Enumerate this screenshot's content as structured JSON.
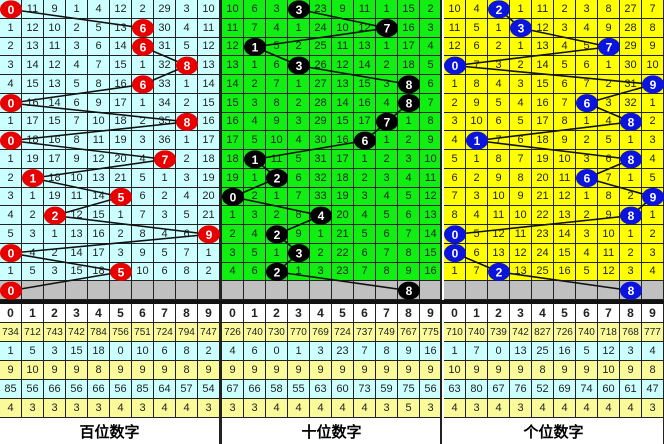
{
  "chart_data": {
    "type": "table",
    "digit_header": [
      "0",
      "1",
      "2",
      "3",
      "4",
      "5",
      "6",
      "7",
      "8",
      "9"
    ],
    "panels": [
      {
        "title": "百位数字",
        "cell_color": "#ccffff",
        "ball_color": "#e80000",
        "balls": [
          0,
          6,
          6,
          8,
          6,
          0,
          8,
          0,
          7,
          1,
          5,
          2,
          9,
          0,
          5,
          0
        ],
        "rows": [
          [
            "0",
            "11",
            "9",
            "1",
            "4",
            "12",
            "2",
            "29",
            "3",
            "10"
          ],
          [
            "1",
            "12",
            "10",
            "2",
            "5",
            "13",
            "6",
            "30",
            "4",
            "11"
          ],
          [
            "2",
            "13",
            "11",
            "3",
            "6",
            "14",
            "6",
            "31",
            "5",
            "12"
          ],
          [
            "3",
            "14",
            "12",
            "4",
            "7",
            "15",
            "1",
            "32",
            "8",
            "13"
          ],
          [
            "4",
            "15",
            "13",
            "5",
            "8",
            "16",
            "6",
            "33",
            "1",
            "14"
          ],
          [
            "0",
            "16",
            "14",
            "6",
            "9",
            "17",
            "1",
            "34",
            "2",
            "15"
          ],
          [
            "1",
            "17",
            "15",
            "7",
            "10",
            "18",
            "2",
            "35",
            "8",
            "16"
          ],
          [
            "0",
            "18",
            "16",
            "8",
            "11",
            "19",
            "3",
            "36",
            "1",
            "17"
          ],
          [
            "1",
            "19",
            "17",
            "9",
            "12",
            "20",
            "4",
            "7",
            "2",
            "18"
          ],
          [
            "2",
            "1",
            "18",
            "10",
            "13",
            "21",
            "5",
            "1",
            "3",
            "19"
          ],
          [
            "3",
            "1",
            "19",
            "11",
            "14",
            "5",
            "6",
            "2",
            "4",
            "20"
          ],
          [
            "4",
            "2",
            "2",
            "12",
            "15",
            "1",
            "7",
            "3",
            "5",
            "21"
          ],
          [
            "5",
            "3",
            "1",
            "13",
            "16",
            "2",
            "8",
            "4",
            "6",
            "9"
          ],
          [
            "0",
            "4",
            "2",
            "14",
            "17",
            "3",
            "9",
            "5",
            "7",
            "1"
          ],
          [
            "1",
            "5",
            "3",
            "15",
            "18",
            "5",
            "10",
            "6",
            "8",
            "2"
          ]
        ],
        "stats": [
          [
            "734",
            "712",
            "743",
            "742",
            "784",
            "756",
            "751",
            "724",
            "794",
            "747"
          ],
          [
            "1",
            "5",
            "3",
            "15",
            "18",
            "0",
            "10",
            "6",
            "8",
            "2"
          ],
          [
            "9",
            "10",
            "9",
            "9",
            "8",
            "9",
            "9",
            "9",
            "8",
            "9"
          ],
          [
            "85",
            "56",
            "66",
            "56",
            "66",
            "56",
            "85",
            "64",
            "57",
            "54"
          ],
          [
            "4",
            "3",
            "3",
            "3",
            "3",
            "4",
            "3",
            "4",
            "4",
            "3"
          ]
        ]
      },
      {
        "title": "十位数字",
        "cell_color": "#11ee11",
        "ball_color": "#000000",
        "balls": [
          3,
          7,
          1,
          3,
          8,
          8,
          7,
          6,
          1,
          2,
          0,
          4,
          2,
          3,
          2,
          8
        ],
        "rows": [
          [
            "10",
            "6",
            "3",
            "3",
            "23",
            "9",
            "11",
            "1",
            "15",
            "2"
          ],
          [
            "11",
            "7",
            "4",
            "1",
            "24",
            "10",
            "12",
            "7",
            "16",
            "3"
          ],
          [
            "12",
            "1",
            "5",
            "2",
            "25",
            "11",
            "13",
            "1",
            "17",
            "4"
          ],
          [
            "13",
            "1",
            "6",
            "3",
            "26",
            "12",
            "14",
            "2",
            "18",
            "5"
          ],
          [
            "14",
            "2",
            "7",
            "1",
            "27",
            "13",
            "15",
            "3",
            "8",
            "6"
          ],
          [
            "15",
            "3",
            "8",
            "2",
            "28",
            "14",
            "16",
            "4",
            "8",
            "7"
          ],
          [
            "16",
            "4",
            "9",
            "3",
            "29",
            "15",
            "17",
            "7",
            "1",
            "8"
          ],
          [
            "17",
            "5",
            "10",
            "4",
            "30",
            "16",
            "6",
            "1",
            "2",
            "9"
          ],
          [
            "18",
            "1",
            "11",
            "5",
            "31",
            "17",
            "1",
            "2",
            "3",
            "10"
          ],
          [
            "19",
            "1",
            "2",
            "6",
            "32",
            "18",
            "2",
            "3",
            "4",
            "11"
          ],
          [
            "0",
            "2",
            "1",
            "7",
            "33",
            "19",
            "3",
            "4",
            "5",
            "12"
          ],
          [
            "1",
            "3",
            "2",
            "8",
            "4",
            "20",
            "4",
            "5",
            "6",
            "13"
          ],
          [
            "2",
            "4",
            "2",
            "9",
            "1",
            "21",
            "5",
            "6",
            "7",
            "14"
          ],
          [
            "3",
            "5",
            "1",
            "3",
            "2",
            "22",
            "6",
            "7",
            "8",
            "15"
          ],
          [
            "4",
            "6",
            "2",
            "1",
            "3",
            "23",
            "7",
            "8",
            "9",
            "16"
          ]
        ],
        "stats": [
          [
            "726",
            "740",
            "730",
            "770",
            "769",
            "724",
            "737",
            "749",
            "767",
            "775"
          ],
          [
            "4",
            "6",
            "0",
            "1",
            "3",
            "23",
            "7",
            "8",
            "9",
            "16"
          ],
          [
            "9",
            "9",
            "9",
            "9",
            "9",
            "9",
            "9",
            "9",
            "9",
            "9"
          ],
          [
            "67",
            "66",
            "58",
            "55",
            "63",
            "60",
            "73",
            "59",
            "75",
            "56"
          ],
          [
            "3",
            "3",
            "4",
            "4",
            "4",
            "4",
            "4",
            "3",
            "5",
            "3"
          ]
        ]
      },
      {
        "title": "个位数字",
        "cell_color": "#ffff00",
        "ball_color": "#0a14dc",
        "balls": [
          2,
          3,
          7,
          0,
          9,
          6,
          8,
          1,
          8,
          6,
          9,
          8,
          0,
          0,
          2,
          8
        ],
        "rows": [
          [
            "10",
            "4",
            "2",
            "1",
            "11",
            "2",
            "3",
            "8",
            "27",
            "7"
          ],
          [
            "11",
            "5",
            "1",
            "3",
            "12",
            "3",
            "4",
            "9",
            "28",
            "8"
          ],
          [
            "12",
            "6",
            "2",
            "1",
            "13",
            "4",
            "5",
            "7",
            "29",
            "9"
          ],
          [
            "0",
            "7",
            "3",
            "2",
            "14",
            "5",
            "6",
            "1",
            "30",
            "10"
          ],
          [
            "1",
            "8",
            "4",
            "3",
            "15",
            "6",
            "7",
            "2",
            "31",
            "9"
          ],
          [
            "2",
            "9",
            "5",
            "4",
            "16",
            "7",
            "6",
            "3",
            "32",
            "1"
          ],
          [
            "3",
            "10",
            "6",
            "5",
            "17",
            "8",
            "1",
            "4",
            "8",
            "2"
          ],
          [
            "4",
            "1",
            "7",
            "6",
            "18",
            "9",
            "2",
            "5",
            "1",
            "3"
          ],
          [
            "5",
            "1",
            "8",
            "7",
            "19",
            "10",
            "3",
            "6",
            "8",
            "4"
          ],
          [
            "6",
            "2",
            "9",
            "8",
            "20",
            "11",
            "6",
            "7",
            "1",
            "5"
          ],
          [
            "7",
            "3",
            "10",
            "9",
            "21",
            "12",
            "1",
            "8",
            "2",
            "9"
          ],
          [
            "8",
            "4",
            "11",
            "10",
            "22",
            "13",
            "2",
            "9",
            "8",
            "1"
          ],
          [
            "0",
            "5",
            "12",
            "11",
            "23",
            "14",
            "3",
            "10",
            "1",
            "2"
          ],
          [
            "0",
            "6",
            "13",
            "12",
            "24",
            "15",
            "4",
            "11",
            "2",
            "3"
          ],
          [
            "1",
            "7",
            "2",
            "13",
            "25",
            "16",
            "5",
            "12",
            "3",
            "4"
          ]
        ],
        "stats": [
          [
            "710",
            "740",
            "739",
            "742",
            "827",
            "726",
            "740",
            "718",
            "768",
            "777"
          ],
          [
            "1",
            "7",
            "0",
            "13",
            "25",
            "16",
            "5",
            "12",
            "3",
            "4"
          ],
          [
            "10",
            "9",
            "9",
            "9",
            "8",
            "9",
            "9",
            "10",
            "9",
            "8"
          ],
          [
            "63",
            "80",
            "67",
            "76",
            "52",
            "69",
            "74",
            "60",
            "61",
            "47"
          ],
          [
            "4",
            "3",
            "4",
            "3",
            "4",
            "4",
            "4",
            "4",
            "4",
            "3"
          ]
        ]
      }
    ],
    "stat_row_colors": [
      "#fafa9a",
      "#ccffff",
      "#fafa9a",
      "#ccffff",
      "#fafa9a"
    ],
    "empty_row_color": "#c0c0c0"
  }
}
